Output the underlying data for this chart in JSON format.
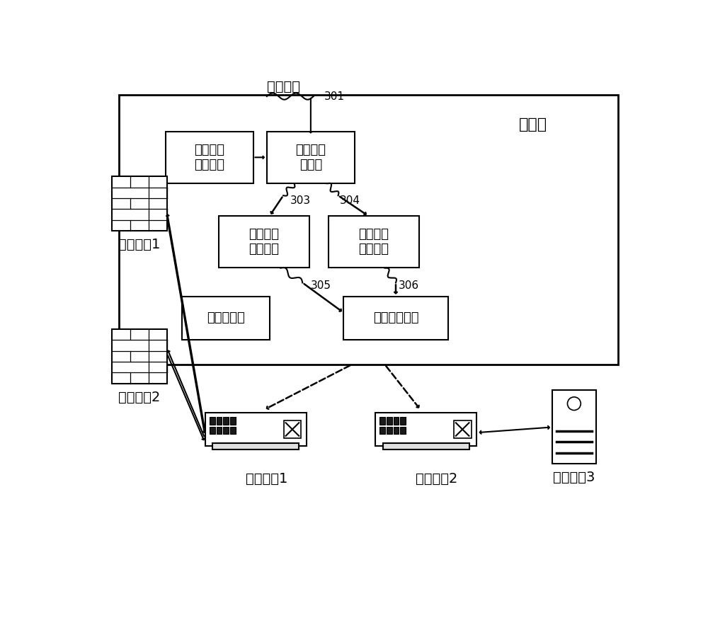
{
  "bg_color": "#ffffff",
  "controller_label": "控制器",
  "title_input": "用户输入",
  "label_user_input_box": "用户输入\n接收单元",
  "label_chain_mgr": "业务链管\n理单元",
  "label_mid_mgr": "中间设备\n管理单元",
  "label_sw_mgr": "交换设备\n管理单元",
  "label_pkt": "包处理模块",
  "label_flow": "流表处理模块",
  "label_sw1": "交换设备1",
  "label_sw2": "交换设备2",
  "label_mid1": "中间设备1",
  "label_mid2": "中间设备2",
  "label_mid3": "中间设备3",
  "num_301": "301",
  "num_303": "303",
  "num_304": "304",
  "num_305": "305",
  "num_306": "306"
}
